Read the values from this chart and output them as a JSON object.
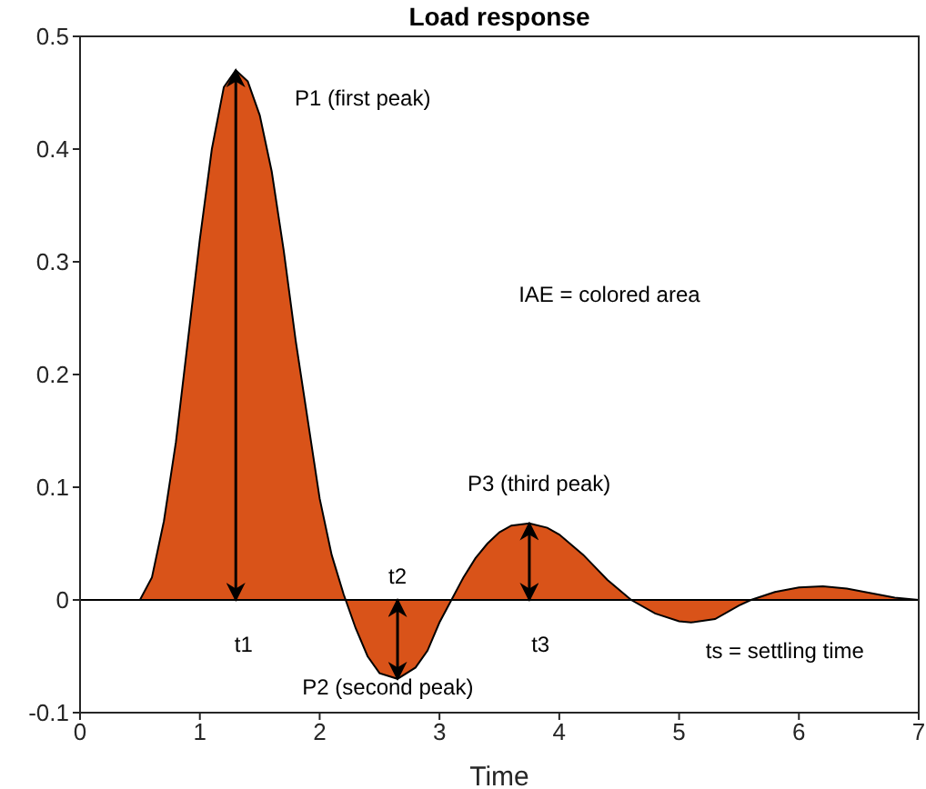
{
  "chart_data": {
    "type": "area",
    "title": "Load response",
    "xlabel": "Time",
    "x": [
      0,
      0.5,
      0.6,
      0.7,
      0.8,
      0.9,
      1.0,
      1.1,
      1.2,
      1.3,
      1.4,
      1.5,
      1.6,
      1.7,
      1.8,
      1.9,
      2.0,
      2.1,
      2.2,
      2.3,
      2.4,
      2.5,
      2.65,
      2.8,
      2.9,
      3.0,
      3.1,
      3.2,
      3.3,
      3.4,
      3.5,
      3.6,
      3.75,
      3.9,
      4.0,
      4.2,
      4.4,
      4.6,
      4.8,
      5.0,
      5.1,
      5.3,
      5.5,
      5.6,
      5.8,
      6.0,
      6.2,
      6.4,
      6.6,
      6.8,
      7.0
    ],
    "series": [
      {
        "color": "#d95319",
        "values": [
          0,
          0,
          0.02,
          0.07,
          0.14,
          0.23,
          0.32,
          0.4,
          0.455,
          0.47,
          0.46,
          0.43,
          0.38,
          0.31,
          0.23,
          0.16,
          0.09,
          0.04,
          0.005,
          -0.025,
          -0.05,
          -0.065,
          -0.07,
          -0.06,
          -0.045,
          -0.02,
          0,
          0.02,
          0.037,
          0.05,
          0.06,
          0.066,
          0.068,
          0.064,
          0.058,
          0.04,
          0.018,
          0,
          -0.012,
          -0.019,
          -0.02,
          -0.017,
          -0.005,
          0,
          0.007,
          0.011,
          0.012,
          0.01,
          0.006,
          0.002,
          0
        ]
      }
    ],
    "xlim": [
      0,
      7
    ],
    "xticks": [
      0,
      1,
      2,
      3,
      4,
      5,
      6,
      7
    ],
    "ylim": [
      -0.1,
      0.5
    ],
    "yticks": [
      -0.1,
      0,
      0.1,
      0.2,
      0.3,
      0.4,
      0.5
    ],
    "grid": false,
    "ref_lines": [
      {
        "axis": "y",
        "value": 0,
        "color": "#000000"
      }
    ],
    "annotations": [
      "P1 (first peak)",
      "IAE = colored area",
      "P3 (third peak)",
      {
        "text": "t2",
        "x": 2.65,
        "y": 0
      },
      "t1",
      "t3",
      "P2 (second peak)",
      "ts = settling time"
    ]
  }
}
